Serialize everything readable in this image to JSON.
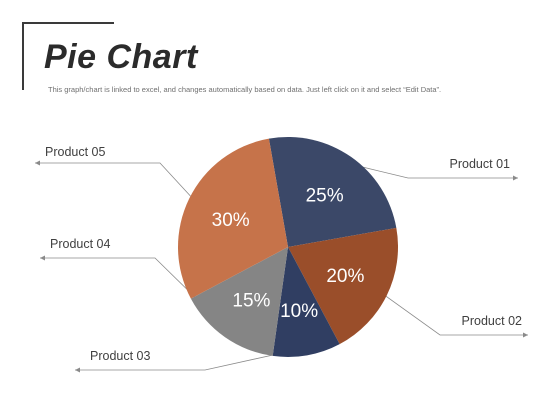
{
  "header": {
    "title": "Pie Chart",
    "subtitle": "This graph/chart is linked to excel, and changes automatically based on data. Just left click on it and select “Edit Data”."
  },
  "chart_data": {
    "type": "pie",
    "title": "",
    "labels": [
      "Product 01",
      "Product 02",
      "Product 03",
      "Product 04",
      "Product 05"
    ],
    "values": [
      25,
      20,
      10,
      15,
      30
    ],
    "value_labels": [
      "25%",
      "20%",
      "10%",
      "15%",
      "30%"
    ],
    "colors": [
      "#3b4868",
      "#9a4e2a",
      "#303e62",
      "#858585",
      "#c6734a"
    ]
  }
}
